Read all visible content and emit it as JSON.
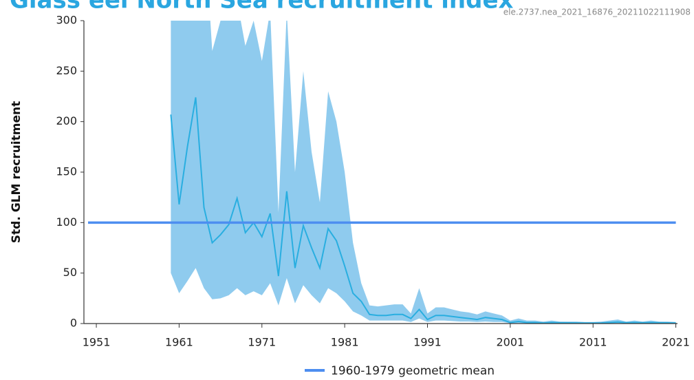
{
  "chart_data": {
    "type": "line",
    "title": "Glass eel North Sea recruitment index",
    "subtitle": "ele.2737.nea_2021_16876_20211022111908",
    "y_label": "Std. GLM recruitment",
    "xlim": [
      1949.5,
      2021.2
    ],
    "ylim": [
      0,
      300
    ],
    "xticks": [
      1951,
      1961,
      1971,
      1981,
      1991,
      2001,
      2011,
      2021
    ],
    "yticks": [
      0,
      50,
      100,
      150,
      200,
      250,
      300
    ],
    "x": [
      1960,
      1961,
      1962,
      1963,
      1964,
      1965,
      1966,
      1967,
      1968,
      1969,
      1970,
      1971,
      1972,
      1973,
      1974,
      1975,
      1976,
      1977,
      1978,
      1979,
      1980,
      1981,
      1982,
      1983,
      1984,
      1985,
      1986,
      1987,
      1988,
      1989,
      1990,
      1991,
      1992,
      1993,
      1994,
      1995,
      1996,
      1997,
      1998,
      1999,
      2000,
      2001,
      2002,
      2003,
      2004,
      2005,
      2006,
      2007,
      2008,
      2009,
      2010,
      2011,
      2012,
      2013,
      2014,
      2015,
      2016,
      2017,
      2018,
      2019,
      2020,
      2021
    ],
    "median": {
      "color": "#29aee0",
      "values": [
        207,
        118,
        175,
        224,
        115,
        80,
        88,
        98,
        124,
        90,
        100,
        86,
        109,
        47,
        131,
        55,
        97,
        75,
        55,
        94,
        82,
        57,
        30,
        22,
        9,
        8,
        8,
        9,
        9,
        5,
        14,
        4,
        8,
        8,
        7,
        6,
        5,
        4,
        6,
        5,
        4,
        1,
        2,
        1,
        1,
        0.5,
        1,
        0.8,
        0.7,
        0.6,
        0.5,
        0.5,
        0.6,
        1,
        1.5,
        0.8,
        1,
        0.8,
        1,
        0.8,
        0.7,
        0.5
      ]
    },
    "band": {
      "color": "#8fcbee",
      "upper": [
        400,
        400,
        400,
        400,
        400,
        270,
        300,
        350,
        320,
        275,
        300,
        260,
        310,
        110,
        310,
        150,
        250,
        170,
        120,
        230,
        200,
        150,
        80,
        40,
        18,
        17,
        18,
        19,
        19,
        10,
        35,
        10,
        16,
        16,
        14,
        12,
        11,
        9,
        12,
        10,
        8,
        3,
        5,
        3,
        3,
        2,
        3,
        2,
        2,
        2,
        1.5,
        1.5,
        2,
        3,
        4,
        2,
        3,
        2,
        3,
        2,
        2,
        1.5
      ],
      "lower": [
        50,
        30,
        42,
        55,
        35,
        24,
        25,
        28,
        35,
        28,
        32,
        28,
        40,
        18,
        45,
        20,
        38,
        28,
        20,
        35,
        30,
        22,
        12,
        8,
        3,
        3,
        3,
        3,
        3,
        1.5,
        5,
        1.5,
        3,
        3,
        2.5,
        2,
        2,
        1.5,
        2,
        1.5,
        1.5,
        0.3,
        0.5,
        0.3,
        0.2,
        0.2,
        0.2,
        0.2,
        0.2,
        0.2,
        0.2,
        0.2,
        0.2,
        0.2,
        0.2,
        0.2,
        0.2,
        0.2,
        0.2,
        0.2,
        0.2,
        0.2
      ]
    },
    "series": [
      {
        "name": "1960-1979 geometric mean",
        "color": "#4d8ef0",
        "x": [
          1950,
          2021
        ],
        "values": [
          100,
          100
        ]
      }
    ]
  }
}
